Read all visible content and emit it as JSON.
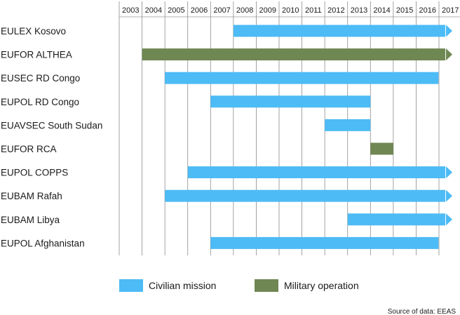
{
  "chart_data": {
    "type": "gantt",
    "years": [
      "2003",
      "2004",
      "2005",
      "2006",
      "2007",
      "2008",
      "2009",
      "2010",
      "2011",
      "2012",
      "2013",
      "2014",
      "2015",
      "2016",
      "2017"
    ],
    "categories": {
      "civilian": {
        "label": "Civilian mission",
        "color": "#4dbbf5"
      },
      "military": {
        "label": "Military operation",
        "color": "#6f8753"
      }
    },
    "missions": [
      {
        "name": "EULEX Kosovo",
        "type": "civilian",
        "start": 2008,
        "end": 2017,
        "ongoing": true
      },
      {
        "name": "EUFOR ALTHEA",
        "type": "military",
        "start": 2004,
        "end": 2017,
        "ongoing": true
      },
      {
        "name": "EUSEC RD Congo",
        "type": "civilian",
        "start": 2005,
        "end": 2016.98,
        "ongoing": false
      },
      {
        "name": "EUPOL RD Congo",
        "type": "civilian",
        "start": 2007,
        "end": 2014,
        "ongoing": false
      },
      {
        "name": "EUAVSEC South Sudan",
        "type": "civilian",
        "start": 2012,
        "end": 2014,
        "ongoing": false
      },
      {
        "name": "EUFOR RCA",
        "type": "military",
        "start": 2014,
        "end": 2015,
        "ongoing": false
      },
      {
        "name": "EUPOL COPPS",
        "type": "civilian",
        "start": 2006,
        "end": 2017,
        "ongoing": true
      },
      {
        "name": "EUBAM Rafah",
        "type": "civilian",
        "start": 2005,
        "end": 2017,
        "ongoing": true
      },
      {
        "name": "EUBAM Libya",
        "type": "civilian",
        "start": 2013,
        "end": 2017,
        "ongoing": true
      },
      {
        "name": "EUPOL Afghanistan",
        "type": "civilian",
        "start": 2007,
        "end": 2016.98,
        "ongoing": false
      }
    ],
    "source": "Source of data: EEAS"
  }
}
